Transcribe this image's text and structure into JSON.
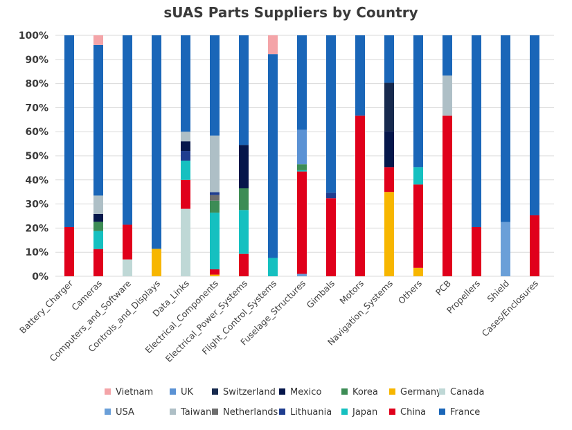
{
  "chart_data": {
    "type": "bar",
    "stacked": true,
    "normalized": true,
    "title": "sUAS Parts Suppliers by Country",
    "xlabel": "",
    "ylabel": "",
    "ylim": [
      0,
      100
    ],
    "yticks": [
      "0%",
      "10%",
      "20%",
      "30%",
      "40%",
      "50%",
      "60%",
      "70%",
      "80%",
      "90%",
      "100%"
    ],
    "grid": true,
    "legend_position": "bottom",
    "categories": [
      "Battery_Charger",
      "Cameras",
      "Computers_and_Software",
      "Controls_and_Displays",
      "Data_Links",
      "Electrical_Components",
      "Electrical_Power_Systems",
      "Flight_Control_Systems",
      "Fuselage_Structures",
      "Gimbals",
      "Motors",
      "Navigation_Systems",
      "Others",
      "PCB",
      "Propellers",
      "Shield",
      "Cases/Enclosures"
    ],
    "series": [
      {
        "name": "USA",
        "color": "#6a9fd8",
        "values": [
          0,
          0,
          0,
          0,
          0,
          0,
          0,
          0,
          1,
          0,
          0,
          0,
          0,
          0,
          0,
          22.5,
          0
        ]
      },
      {
        "name": "Canada",
        "color": "#bfd8d6",
        "values": [
          0,
          0,
          7,
          0,
          28,
          0,
          0,
          0,
          0,
          0,
          0,
          0,
          0,
          0,
          0,
          0,
          0
        ]
      },
      {
        "name": "Germany",
        "color": "#f7b600",
        "values": [
          0,
          0,
          0,
          11.4,
          0,
          0.7,
          0,
          0,
          0,
          0,
          0,
          35,
          3.5,
          0,
          0,
          0,
          0
        ]
      },
      {
        "name": "China",
        "color": "#e0001b",
        "values": [
          20.4,
          11.3,
          14.4,
          0,
          12,
          2.2,
          9.3,
          0,
          42.5,
          32.4,
          66.7,
          10.3,
          34.6,
          66.7,
          20.4,
          0,
          25.3
        ]
      },
      {
        "name": "Japan",
        "color": "#15c0c0",
        "values": [
          0,
          7.5,
          0,
          0,
          8,
          23.5,
          18.2,
          7.6,
          0.5,
          0,
          0,
          0,
          7.2,
          0,
          0,
          0,
          0
        ]
      },
      {
        "name": "Korea",
        "color": "#3d8c55",
        "values": [
          0,
          3.8,
          0,
          0,
          0,
          5,
          9,
          0,
          2.5,
          0,
          0,
          0,
          0,
          0,
          0,
          0,
          0
        ]
      },
      {
        "name": "Netherlands",
        "color": "#6e6e6e",
        "values": [
          0,
          0,
          0,
          0,
          0,
          2.3,
          0,
          0,
          0,
          0,
          0,
          0,
          0,
          0,
          0,
          0,
          0
        ]
      },
      {
        "name": "Lithuania",
        "color": "#1f3d8f",
        "values": [
          0,
          0,
          0,
          0,
          4,
          1.2,
          0,
          0,
          0,
          2.3,
          0,
          0,
          0,
          0,
          0,
          0,
          0
        ]
      },
      {
        "name": "Mexico",
        "color": "#06174b",
        "values": [
          0,
          3.3,
          0,
          0,
          4,
          0,
          18,
          0,
          0,
          0,
          0,
          15,
          0,
          0,
          0,
          0,
          0
        ]
      },
      {
        "name": "Switzerland",
        "color": "#172a4e",
        "values": [
          0,
          0,
          0,
          0,
          0,
          0,
          0,
          0,
          0,
          0,
          0,
          20,
          0,
          0,
          0,
          0,
          0
        ]
      },
      {
        "name": "Taiwan",
        "color": "#aebfc6",
        "values": [
          0,
          7.6,
          0,
          0,
          4,
          23.5,
          0,
          0,
          0,
          0,
          0,
          0,
          0,
          16.6,
          0,
          0,
          0
        ]
      },
      {
        "name": "UK",
        "color": "#5b92d4",
        "values": [
          0,
          0,
          0,
          0,
          0,
          0,
          0,
          0,
          14.3,
          0,
          0,
          0,
          0,
          0,
          0,
          0,
          0
        ]
      },
      {
        "name": "France",
        "color": "#1a66b8",
        "values": [
          79.6,
          62.5,
          78.6,
          88.6,
          40,
          41.6,
          45.5,
          84.6,
          39.2,
          65.3,
          33.3,
          19.7,
          54.7,
          16.7,
          79.6,
          77.5,
          74.7
        ]
      },
      {
        "name": "Vietnam",
        "color": "#f4a4a8",
        "values": [
          0,
          4,
          0,
          0,
          0,
          0,
          0,
          7.8,
          0,
          0,
          0,
          0,
          0,
          0,
          0,
          0,
          0
        ]
      }
    ],
    "legend": [
      [
        "Vietnam",
        "UK",
        "Switzerland",
        "Mexico",
        "Korea",
        "Germany",
        "Canada"
      ],
      [
        "USA",
        "Taiwan",
        "Netherlands",
        "Lithuania",
        "Japan",
        "China",
        "France"
      ]
    ]
  }
}
